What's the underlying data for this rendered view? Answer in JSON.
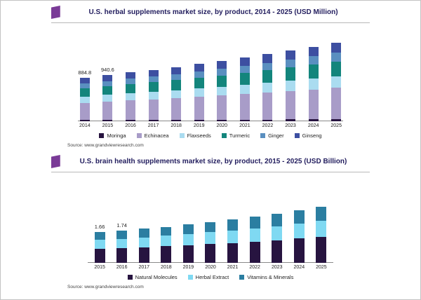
{
  "charts": [
    {
      "title": "U.S. herbal supplements market size, by product, 2014 - 2025 (USD Million)",
      "source": "Source: www.grandviewresearch.com",
      "chart_data": {
        "type": "bar",
        "stacked": true,
        "title": "U.S. herbal supplements market size, by product, 2014 - 2025 (USD Million)",
        "xlabel": "",
        "ylabel": "USD Million",
        "ylim": [
          0,
          1850
        ],
        "legend_position": "bottom",
        "grid": false,
        "categories": [
          "2014",
          "2015",
          "2016",
          "2017",
          "2018",
          "2019",
          "2020",
          "2021",
          "2022",
          "2023",
          "2024",
          "2025"
        ],
        "series": [
          {
            "name": "Moringa",
            "color": "#271440",
            "values": [
              22.1,
              23.5,
              24.8,
              26.2,
              27.6,
              29.1,
              30.7,
              32.3,
              34.1,
              35.9,
              37.9,
              39.9
            ]
          },
          {
            "name": "Echinacea",
            "color": "#a89cc8",
            "values": [
              353.9,
              376.2,
              396.8,
              418.4,
              441.2,
              465.2,
              490.4,
              517.2,
              545.2,
              574.8,
              606.0,
              638.8
            ]
          },
          {
            "name": "Flaxseeds",
            "color": "#aadcf0",
            "values": [
              128.3,
              136.4,
              143.8,
              151.7,
              159.9,
              168.6,
              177.8,
              187.5,
              197.6,
              208.4,
              219.7,
              231.6
            ]
          },
          {
            "name": "Turmeric",
            "color": "#13857c",
            "values": [
              168.1,
              178.7,
              188.5,
              198.7,
              209.6,
              221.0,
              232.9,
              245.7,
              259.0,
              273.0,
              287.9,
              303.4
            ]
          },
          {
            "name": "Ginger",
            "color": "#5a8fc0",
            "values": [
              97.3,
              103.5,
              109.1,
              115.1,
              121.3,
              127.9,
              134.9,
              142.2,
              149.9,
              158.1,
              166.7,
              175.7
            ]
          },
          {
            "name": "Ginseng",
            "color": "#3d4fa1",
            "values": [
              115.0,
              122.3,
              129.0,
              136.0,
              143.4,
              151.2,
              159.4,
              168.1,
              177.2,
              186.8,
              197.0,
              207.6
            ]
          }
        ],
        "annotations": [
          {
            "index": 0,
            "text": "884.8"
          },
          {
            "index": 1,
            "text": "940.6"
          }
        ]
      }
    },
    {
      "title": "U.S. brain health supplements market size, by product, 2015 - 2025 (USD Billion)",
      "source": "Source: www.grandviewresearch.com",
      "chart_data": {
        "type": "bar",
        "stacked": true,
        "title": "U.S. brain health supplements market size, by product, 2015 - 2025 (USD Billion)",
        "xlabel": "",
        "ylabel": "USD Billion",
        "ylim": [
          0,
          3.6
        ],
        "legend_position": "bottom",
        "grid": false,
        "categories": [
          "2015",
          "2016",
          "2017",
          "2018",
          "2019",
          "2020",
          "2021",
          "2022",
          "2023",
          "2024",
          "2025"
        ],
        "series": [
          {
            "name": "Natural Molecules",
            "color": "#271440",
            "values": [
              0.76,
              0.8,
              0.85,
              0.9,
              0.95,
              1.01,
              1.08,
              1.15,
              1.22,
              1.31,
              1.4
            ]
          },
          {
            "name": "Herbal Extract",
            "color": "#7fd9f2",
            "values": [
              0.48,
              0.5,
              0.53,
              0.57,
              0.6,
              0.64,
              0.68,
              0.72,
              0.77,
              0.82,
              0.88
            ]
          },
          {
            "name": "Vitamins & Minerals",
            "color": "#2b7ea1",
            "values": [
              0.42,
              0.44,
              0.46,
              0.48,
              0.52,
              0.55,
              0.58,
              0.62,
              0.67,
              0.71,
              0.76
            ]
          }
        ],
        "annotations": [
          {
            "index": 0,
            "text": "1.66"
          },
          {
            "index": 1,
            "text": "1.74"
          }
        ]
      }
    }
  ]
}
